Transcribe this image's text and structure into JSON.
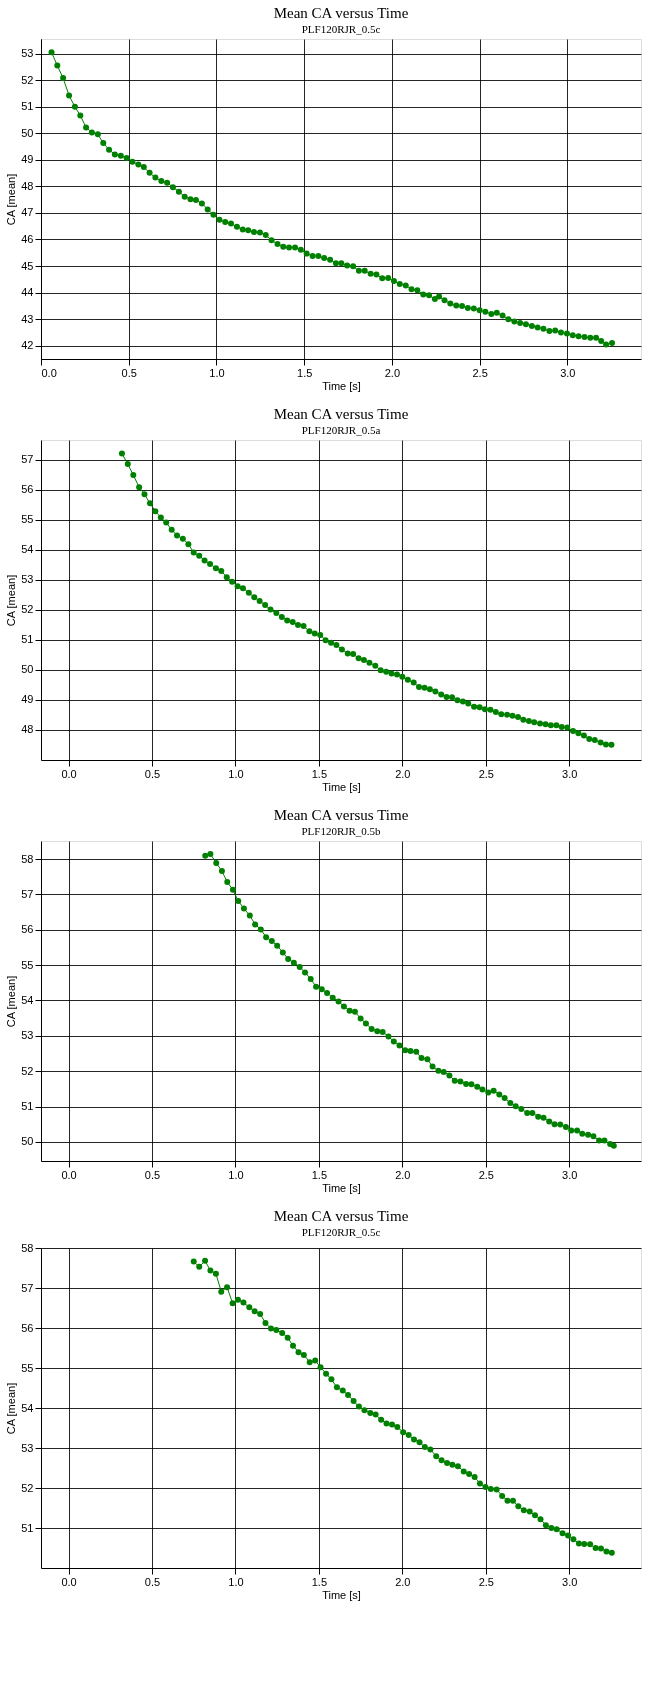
{
  "chart_data": [
    {
      "type": "line",
      "title": "Mean CA versus Time",
      "subtitle": "PLF120RJR_0.5c",
      "xlabel": "Time [s]",
      "ylabel": "CA [mean]",
      "grid": true,
      "marker": "circle",
      "line_style": "solid",
      "xlim": [
        0,
        3.42
      ],
      "ylim": [
        41.5,
        53.55
      ],
      "xticks": [
        {
          "value": 0,
          "label": "0.0"
        },
        {
          "value": 0.5,
          "label": "0.5"
        },
        {
          "value": 1,
          "label": "1.0"
        },
        {
          "value": 1.5,
          "label": "1.5"
        },
        {
          "value": 2,
          "label": "2.0"
        },
        {
          "value": 2.5,
          "label": "2.5"
        },
        {
          "value": 3,
          "label": "3.0"
        }
      ],
      "yticks": [
        42,
        43,
        44,
        45,
        46,
        47,
        48,
        49,
        50,
        51,
        52,
        53
      ],
      "series": [
        {
          "color": "#008000",
          "x": [
            0.06,
            0.093,
            0.126,
            0.16,
            0.193,
            0.224,
            0.257,
            0.29,
            0.324,
            0.355,
            0.388,
            0.421,
            0.455,
            0.488,
            0.521,
            0.555,
            0.586,
            0.619,
            0.652,
            0.686,
            0.719,
            0.752,
            0.786,
            0.819,
            0.852,
            0.883,
            0.917,
            0.95,
            0.983,
            1.017,
            1.05,
            1.083,
            1.117,
            1.15,
            1.181,
            1.214,
            1.248,
            1.281,
            1.314,
            1.348,
            1.381,
            1.414,
            1.448,
            1.481,
            1.514,
            1.548,
            1.581,
            1.614,
            1.648,
            1.681,
            1.712,
            1.745,
            1.779,
            1.812,
            1.845,
            1.879,
            1.912,
            1.945,
            1.979,
            2.012,
            2.045,
            2.079,
            2.112,
            2.145,
            2.179,
            2.212,
            2.245,
            2.269,
            2.3,
            2.333,
            2.367,
            2.4,
            2.433,
            2.467,
            2.5,
            2.533,
            2.567,
            2.598,
            2.631,
            2.664,
            2.698,
            2.731,
            2.764,
            2.798,
            2.831,
            2.864,
            2.898,
            2.931,
            2.964,
            2.998,
            3.031,
            3.064,
            3.098,
            3.131,
            3.164,
            3.193,
            3.221,
            3.255
          ],
          "values": [
            53.05,
            52.55,
            52.08,
            51.42,
            51.0,
            50.67,
            50.22,
            50.03,
            49.96,
            49.63,
            49.38,
            49.2,
            49.15,
            49.07,
            48.93,
            48.82,
            48.73,
            48.51,
            48.33,
            48.2,
            48.14,
            47.97,
            47.8,
            47.61,
            47.52,
            47.49,
            47.36,
            47.13,
            46.93,
            46.74,
            46.66,
            46.6,
            46.48,
            46.38,
            46.35,
            46.28,
            46.26,
            46.17,
            45.97,
            45.83,
            45.73,
            45.7,
            45.7,
            45.61,
            45.47,
            45.38,
            45.38,
            45.3,
            45.24,
            45.11,
            45.11,
            45.02,
            44.99,
            44.82,
            44.82,
            44.71,
            44.68,
            44.54,
            44.55,
            44.44,
            44.32,
            44.27,
            44.13,
            44.09,
            43.93,
            43.9,
            43.76,
            43.85,
            43.71,
            43.59,
            43.51,
            43.5,
            43.42,
            43.4,
            43.34,
            43.28,
            43.19,
            43.24,
            43.14,
            43.0,
            42.91,
            42.86,
            42.81,
            42.74,
            42.69,
            42.64,
            42.55,
            42.57,
            42.5,
            42.46,
            42.39,
            42.36,
            42.33,
            42.3,
            42.3,
            42.18,
            42.05,
            42.1
          ]
        }
      ]
    },
    {
      "type": "line",
      "title": "Mean CA versus Time",
      "subtitle": "PLF120RJR_0.5a",
      "xlabel": "Time [s]",
      "ylabel": "CA [mean]",
      "grid": true,
      "marker": "circle",
      "line_style": "solid",
      "xlim": [
        -0.165,
        3.43
      ],
      "ylim": [
        47.0,
        57.66
      ],
      "xticks": [
        {
          "value": 0,
          "label": "0.0"
        },
        {
          "value": 0.5,
          "label": "0.5"
        },
        {
          "value": 1,
          "label": "1.0"
        },
        {
          "value": 1.5,
          "label": "1.5"
        },
        {
          "value": 2,
          "label": "2.0"
        },
        {
          "value": 2.5,
          "label": "2.5"
        },
        {
          "value": 3,
          "label": "3.0"
        }
      ],
      "yticks": [
        48,
        49,
        50,
        51,
        52,
        53,
        54,
        55,
        56,
        57
      ],
      "series": [
        {
          "color": "#008000",
          "x": [
            0.32,
            0.355,
            0.388,
            0.423,
            0.455,
            0.488,
            0.52,
            0.553,
            0.585,
            0.618,
            0.65,
            0.685,
            0.718,
            0.75,
            0.783,
            0.815,
            0.848,
            0.883,
            0.915,
            0.948,
            0.98,
            1.013,
            1.045,
            1.08,
            1.113,
            1.145,
            1.178,
            1.21,
            1.245,
            1.278,
            1.31,
            1.343,
            1.375,
            1.408,
            1.443,
            1.475,
            1.508,
            1.54,
            1.573,
            1.605,
            1.638,
            1.673,
            1.705,
            1.738,
            1.77,
            1.803,
            1.838,
            1.87,
            1.903,
            1.935,
            1.968,
            2.0,
            2.033,
            2.068,
            2.1,
            2.133,
            2.165,
            2.198,
            2.233,
            2.265,
            2.298,
            2.33,
            2.363,
            2.395,
            2.43,
            2.463,
            2.495,
            2.528,
            2.56,
            2.593,
            2.628,
            2.66,
            2.693,
            2.725,
            2.758,
            2.79,
            2.825,
            2.858,
            2.89,
            2.923,
            2.955,
            2.988,
            3.023,
            3.055,
            3.088,
            3.12,
            3.153,
            3.188,
            3.22,
            3.253
          ],
          "values": [
            57.21,
            56.86,
            56.49,
            56.09,
            55.85,
            55.55,
            55.29,
            55.08,
            54.91,
            54.67,
            54.48,
            54.37,
            54.19,
            53.91,
            53.8,
            53.65,
            53.53,
            53.39,
            53.3,
            53.09,
            52.94,
            52.79,
            52.72,
            52.57,
            52.42,
            52.3,
            52.16,
            52.01,
            51.9,
            51.76,
            51.65,
            51.6,
            51.5,
            51.46,
            51.29,
            51.21,
            51.16,
            50.99,
            50.91,
            50.83,
            50.68,
            50.55,
            50.53,
            50.39,
            50.33,
            50.24,
            50.14,
            49.99,
            49.94,
            49.88,
            49.85,
            49.77,
            49.67,
            49.58,
            49.43,
            49.41,
            49.36,
            49.28,
            49.18,
            49.1,
            49.09,
            48.99,
            48.95,
            48.88,
            48.77,
            48.76,
            48.69,
            48.67,
            48.6,
            48.52,
            48.51,
            48.47,
            48.43,
            48.34,
            48.3,
            48.26,
            48.22,
            48.19,
            48.16,
            48.16,
            48.1,
            48.08,
            47.97,
            47.89,
            47.82,
            47.7,
            47.67,
            47.58,
            47.52,
            47.51
          ]
        }
      ]
    },
    {
      "type": "line",
      "title": "Mean CA versus Time",
      "subtitle": "PLF120RJR_0.5b",
      "xlabel": "Time [s]",
      "ylabel": "CA [mean]",
      "grid": true,
      "marker": "circle",
      "line_style": "solid",
      "xlim": [
        -0.165,
        3.43
      ],
      "ylim": [
        49.46,
        58.51
      ],
      "xticks": [
        {
          "value": 0,
          "label": "0.0"
        },
        {
          "value": 0.5,
          "label": "0.5"
        },
        {
          "value": 1,
          "label": "1.0"
        },
        {
          "value": 1.5,
          "label": "1.5"
        },
        {
          "value": 2,
          "label": "2.0"
        },
        {
          "value": 2.5,
          "label": "2.5"
        },
        {
          "value": 3,
          "label": "3.0"
        }
      ],
      "yticks": [
        50,
        51,
        52,
        53,
        54,
        55,
        56,
        57,
        58
      ],
      "series": [
        {
          "color": "#008000",
          "x": [
            0.819,
            0.85,
            0.885,
            0.919,
            0.951,
            0.985,
            1.017,
            1.051,
            1.086,
            1.118,
            1.152,
            1.184,
            1.218,
            1.25,
            1.284,
            1.316,
            1.35,
            1.385,
            1.417,
            1.451,
            1.483,
            1.517,
            1.549,
            1.583,
            1.618,
            1.65,
            1.684,
            1.716,
            1.75,
            1.782,
            1.816,
            1.85,
            1.882,
            1.917,
            1.949,
            1.983,
            2.017,
            2.049,
            2.083,
            2.115,
            2.15,
            2.181,
            2.216,
            2.248,
            2.282,
            2.314,
            2.348,
            2.382,
            2.414,
            2.449,
            2.48,
            2.515,
            2.547,
            2.581,
            2.613,
            2.647,
            2.679,
            2.713,
            2.748,
            2.779,
            2.814,
            2.846,
            2.88,
            2.912,
            2.946,
            2.98,
            3.012,
            3.047,
            3.078,
            3.113,
            3.145,
            3.179,
            3.211,
            3.245,
            3.267
          ],
          "values": [
            58.09,
            58.14,
            57.89,
            57.66,
            57.35,
            57.13,
            56.81,
            56.6,
            56.4,
            56.15,
            56.01,
            55.79,
            55.68,
            55.55,
            55.36,
            55.17,
            55.07,
            54.95,
            54.79,
            54.61,
            54.39,
            54.32,
            54.21,
            54.08,
            53.97,
            53.83,
            53.71,
            53.68,
            53.49,
            53.35,
            53.19,
            53.13,
            53.11,
            52.98,
            52.84,
            52.73,
            52.59,
            52.57,
            52.55,
            52.37,
            52.34,
            52.13,
            52.01,
            51.98,
            51.88,
            51.73,
            51.71,
            51.64,
            51.63,
            51.56,
            51.48,
            51.4,
            51.45,
            51.34,
            51.24,
            51.1,
            51.01,
            50.93,
            50.82,
            50.82,
            50.71,
            50.68,
            50.58,
            50.5,
            50.49,
            50.42,
            50.32,
            50.32,
            50.23,
            50.2,
            50.16,
            50.04,
            50.04,
            49.94,
            49.89
          ]
        }
      ]
    },
    {
      "type": "line",
      "title": "Mean CA versus Time",
      "subtitle": "PLF120RJR_0.5c",
      "xlabel": "Time [s]",
      "ylabel": "CA [mean]",
      "grid": true,
      "marker": "circle",
      "line_style": "solid",
      "xlim": [
        -0.165,
        3.43
      ],
      "ylim": [
        50.01,
        58
      ],
      "xticks": [
        {
          "value": 0,
          "label": "0.0"
        },
        {
          "value": 0.5,
          "label": "0.5"
        },
        {
          "value": 1,
          "label": "1.0"
        },
        {
          "value": 1.5,
          "label": "1.5"
        },
        {
          "value": 2,
          "label": "2.0"
        },
        {
          "value": 2.5,
          "label": "2.5"
        },
        {
          "value": 3,
          "label": "3.0"
        }
      ],
      "yticks": [
        51,
        52,
        53,
        54,
        55,
        56,
        57,
        58
      ],
      "series": [
        {
          "color": "#008000",
          "x": [
            0.75,
            0.783,
            0.818,
            0.85,
            0.883,
            0.915,
            0.95,
            0.983,
            1.015,
            1.048,
            1.083,
            1.115,
            1.148,
            1.18,
            1.213,
            1.245,
            1.28,
            1.313,
            1.345,
            1.378,
            1.41,
            1.445,
            1.478,
            1.51,
            1.543,
            1.575,
            1.608,
            1.643,
            1.675,
            1.708,
            1.74,
            1.773,
            1.808,
            1.84,
            1.873,
            1.905,
            1.938,
            1.97,
            2.005,
            2.038,
            2.07,
            2.103,
            2.135,
            2.168,
            2.203,
            2.235,
            2.268,
            2.3,
            2.333,
            2.368,
            2.4,
            2.433,
            2.465,
            2.498,
            2.53,
            2.565,
            2.598,
            2.63,
            2.663,
            2.695,
            2.728,
            2.763,
            2.795,
            2.828,
            2.86,
            2.893,
            2.925,
            2.96,
            2.993,
            3.025,
            3.058,
            3.09,
            3.125,
            3.158,
            3.19,
            3.223,
            3.255
          ],
          "values": [
            57.66,
            57.53,
            57.68,
            57.44,
            57.36,
            56.91,
            57.02,
            56.62,
            56.71,
            56.64,
            56.52,
            56.42,
            56.35,
            56.13,
            55.99,
            55.95,
            55.88,
            55.76,
            55.56,
            55.4,
            55.33,
            55.15,
            55.19,
            55.02,
            54.86,
            54.72,
            54.52,
            54.44,
            54.33,
            54.18,
            54.04,
            53.95,
            53.88,
            53.84,
            53.71,
            53.62,
            53.59,
            53.53,
            53.4,
            53.33,
            53.22,
            53.15,
            53.03,
            52.97,
            52.8,
            52.7,
            52.63,
            52.59,
            52.55,
            52.42,
            52.36,
            52.28,
            52.12,
            52.03,
            51.98,
            51.97,
            51.81,
            51.69,
            51.69,
            51.55,
            51.45,
            51.42,
            51.33,
            51.23,
            51.08,
            51.01,
            50.98,
            50.88,
            50.82,
            50.73,
            50.62,
            50.61,
            50.6,
            50.51,
            50.5,
            50.42,
            50.39
          ]
        }
      ]
    }
  ]
}
